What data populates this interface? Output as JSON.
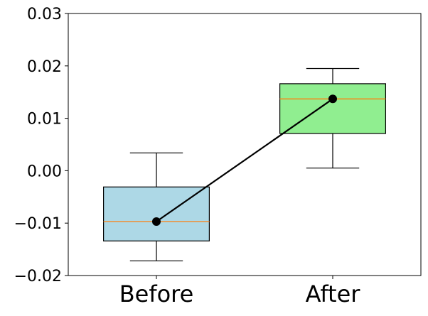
{
  "chart_data": {
    "type": "box",
    "title": "",
    "xlabel": "",
    "ylabel": "",
    "categories": [
      "Before",
      "After"
    ],
    "ylim": [
      -0.02,
      0.03
    ],
    "yticks": [
      -0.02,
      -0.01,
      0.0,
      0.01,
      0.02,
      0.03
    ],
    "ytick_labels": [
      "−0.02",
      "−0.01",
      "0.00",
      "0.01",
      "0.02",
      "0.03"
    ],
    "grid": false,
    "legend": "none",
    "boxes": [
      {
        "category": "Before",
        "whisker_low": -0.0172,
        "q1": -0.0134,
        "median": -0.0097,
        "q3": -0.0031,
        "whisker_high": 0.0034,
        "mean": -0.0097,
        "fill_color": "#add8e6"
      },
      {
        "category": "After",
        "whisker_low": 0.0005,
        "q1": 0.0071,
        "median": 0.0137,
        "q3": 0.0166,
        "whisker_high": 0.0195,
        "mean": 0.0137,
        "fill_color": "#90ee90"
      }
    ],
    "connecting_line": {
      "from": "Before",
      "to": "After",
      "values": [
        -0.0097,
        0.0137
      ],
      "color": "#000000"
    },
    "colors": {
      "median_line": "#ff7f0e",
      "edge": "#000000",
      "marker": "#000000"
    }
  }
}
